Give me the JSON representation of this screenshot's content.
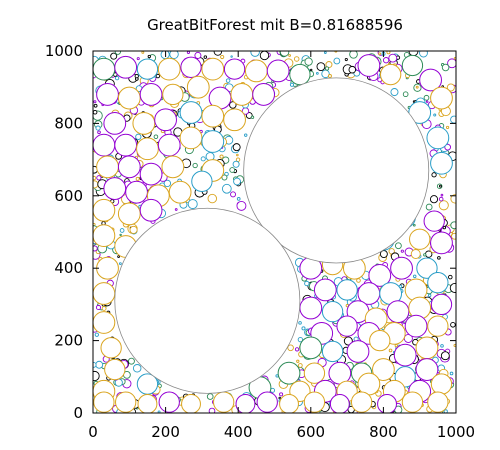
{
  "chart_data": {
    "type": "scatter",
    "title": "GreatBitForest mit B=0.81688596",
    "xlabel": "",
    "ylabel": "",
    "xlim": [
      0,
      1000
    ],
    "ylim": [
      0,
      1000
    ],
    "xticks": [
      "0",
      "200",
      "400",
      "600",
      "800",
      "1000"
    ],
    "yticks": [
      "0",
      "200",
      "400",
      "600",
      "800",
      "1000"
    ],
    "grid": false,
    "legend": "none",
    "series_colors": [
      "#9400d3",
      "#daa520",
      "#2e8b57",
      "#2a9ec8",
      "#000000"
    ],
    "large_circles": [
      {
        "x": 670,
        "y": 670,
        "r": 255
      },
      {
        "x": 315,
        "y": 310,
        "r": 255
      }
    ],
    "medium_circles": [
      {
        "x": 30,
        "y": 950,
        "r": 30,
        "c": 2
      },
      {
        "x": 90,
        "y": 955,
        "r": 30,
        "c": 0
      },
      {
        "x": 150,
        "y": 950,
        "r": 28,
        "c": 3
      },
      {
        "x": 210,
        "y": 950,
        "r": 30,
        "c": 1
      },
      {
        "x": 270,
        "y": 955,
        "r": 28,
        "c": 0
      },
      {
        "x": 330,
        "y": 950,
        "r": 30,
        "c": 1
      },
      {
        "x": 390,
        "y": 950,
        "r": 28,
        "c": 0
      },
      {
        "x": 450,
        "y": 945,
        "r": 30,
        "c": 1
      },
      {
        "x": 510,
        "y": 945,
        "r": 30,
        "c": 0
      },
      {
        "x": 570,
        "y": 935,
        "r": 28,
        "c": 2
      },
      {
        "x": 760,
        "y": 960,
        "r": 30,
        "c": 0
      },
      {
        "x": 820,
        "y": 935,
        "r": 28,
        "c": 1
      },
      {
        "x": 880,
        "y": 960,
        "r": 28,
        "c": 2
      },
      {
        "x": 930,
        "y": 920,
        "r": 30,
        "c": 0
      },
      {
        "x": 40,
        "y": 880,
        "r": 30,
        "c": 0
      },
      {
        "x": 100,
        "y": 870,
        "r": 30,
        "c": 1
      },
      {
        "x": 160,
        "y": 880,
        "r": 30,
        "c": 0
      },
      {
        "x": 220,
        "y": 880,
        "r": 28,
        "c": 1
      },
      {
        "x": 290,
        "y": 900,
        "r": 30,
        "c": 1
      },
      {
        "x": 350,
        "y": 870,
        "r": 30,
        "c": 0
      },
      {
        "x": 410,
        "y": 880,
        "r": 30,
        "c": 1
      },
      {
        "x": 470,
        "y": 880,
        "r": 30,
        "c": 0
      },
      {
        "x": 960,
        "y": 870,
        "r": 30,
        "c": 1
      },
      {
        "x": 900,
        "y": 830,
        "r": 30,
        "c": 3
      },
      {
        "x": 60,
        "y": 800,
        "r": 30,
        "c": 0
      },
      {
        "x": 140,
        "y": 800,
        "r": 30,
        "c": 1
      },
      {
        "x": 200,
        "y": 810,
        "r": 30,
        "c": 0
      },
      {
        "x": 270,
        "y": 830,
        "r": 30,
        "c": 3
      },
      {
        "x": 330,
        "y": 820,
        "r": 30,
        "c": 1
      },
      {
        "x": 390,
        "y": 810,
        "r": 30,
        "c": 1
      },
      {
        "x": 30,
        "y": 740,
        "r": 30,
        "c": 0
      },
      {
        "x": 90,
        "y": 740,
        "r": 30,
        "c": 0
      },
      {
        "x": 150,
        "y": 730,
        "r": 30,
        "c": 1
      },
      {
        "x": 210,
        "y": 740,
        "r": 30,
        "c": 0
      },
      {
        "x": 270,
        "y": 760,
        "r": 30,
        "c": 1
      },
      {
        "x": 330,
        "y": 750,
        "r": 30,
        "c": 3
      },
      {
        "x": 950,
        "y": 760,
        "r": 30,
        "c": 3
      },
      {
        "x": 960,
        "y": 690,
        "r": 30,
        "c": 3
      },
      {
        "x": 40,
        "y": 680,
        "r": 30,
        "c": 1
      },
      {
        "x": 100,
        "y": 680,
        "r": 30,
        "c": 0
      },
      {
        "x": 160,
        "y": 660,
        "r": 30,
        "c": 0
      },
      {
        "x": 220,
        "y": 680,
        "r": 30,
        "c": 1
      },
      {
        "x": 330,
        "y": 670,
        "r": 30,
        "c": 1
      },
      {
        "x": 60,
        "y": 620,
        "r": 30,
        "c": 0
      },
      {
        "x": 120,
        "y": 610,
        "r": 30,
        "c": 0
      },
      {
        "x": 180,
        "y": 600,
        "r": 30,
        "c": 1
      },
      {
        "x": 240,
        "y": 610,
        "r": 30,
        "c": 1
      },
      {
        "x": 300,
        "y": 640,
        "r": 28,
        "c": 3
      },
      {
        "x": 30,
        "y": 560,
        "r": 30,
        "c": 1
      },
      {
        "x": 100,
        "y": 550,
        "r": 30,
        "c": 1
      },
      {
        "x": 160,
        "y": 560,
        "r": 30,
        "c": 0
      },
      {
        "x": 940,
        "y": 530,
        "r": 28,
        "c": 0
      },
      {
        "x": 960,
        "y": 470,
        "r": 30,
        "c": 0
      },
      {
        "x": 900,
        "y": 480,
        "r": 28,
        "c": 1
      },
      {
        "x": 30,
        "y": 490,
        "r": 30,
        "c": 1
      },
      {
        "x": 90,
        "y": 460,
        "r": 30,
        "c": 1
      },
      {
        "x": 860,
        "y": 540,
        "r": 28,
        "c": 3
      },
      {
        "x": 800,
        "y": 480,
        "r": 30,
        "c": 3
      },
      {
        "x": 740,
        "y": 460,
        "r": 28,
        "c": 1
      },
      {
        "x": 40,
        "y": 400,
        "r": 30,
        "c": 1
      },
      {
        "x": 600,
        "y": 400,
        "r": 30,
        "c": 0
      },
      {
        "x": 660,
        "y": 410,
        "r": 28,
        "c": 1
      },
      {
        "x": 720,
        "y": 400,
        "r": 30,
        "c": 1
      },
      {
        "x": 790,
        "y": 380,
        "r": 30,
        "c": 0
      },
      {
        "x": 850,
        "y": 400,
        "r": 30,
        "c": 0
      },
      {
        "x": 920,
        "y": 400,
        "r": 28,
        "c": 3
      },
      {
        "x": 640,
        "y": 340,
        "r": 30,
        "c": 0
      },
      {
        "x": 700,
        "y": 340,
        "r": 28,
        "c": 3
      },
      {
        "x": 760,
        "y": 330,
        "r": 30,
        "c": 0
      },
      {
        "x": 820,
        "y": 330,
        "r": 30,
        "c": 3
      },
      {
        "x": 890,
        "y": 340,
        "r": 30,
        "c": 1
      },
      {
        "x": 950,
        "y": 360,
        "r": 28,
        "c": 3
      },
      {
        "x": 30,
        "y": 330,
        "r": 30,
        "c": 1
      },
      {
        "x": 600,
        "y": 290,
        "r": 30,
        "c": 0
      },
      {
        "x": 660,
        "y": 280,
        "r": 28,
        "c": 3
      },
      {
        "x": 730,
        "y": 280,
        "r": 30,
        "c": 0
      },
      {
        "x": 780,
        "y": 260,
        "r": 30,
        "c": 1
      },
      {
        "x": 840,
        "y": 280,
        "r": 30,
        "c": 0
      },
      {
        "x": 900,
        "y": 290,
        "r": 30,
        "c": 1
      },
      {
        "x": 960,
        "y": 300,
        "r": 28,
        "c": 0
      },
      {
        "x": 30,
        "y": 250,
        "r": 30,
        "c": 1
      },
      {
        "x": 630,
        "y": 220,
        "r": 30,
        "c": 0
      },
      {
        "x": 700,
        "y": 240,
        "r": 28,
        "c": 0
      },
      {
        "x": 760,
        "y": 220,
        "r": 30,
        "c": 0
      },
      {
        "x": 830,
        "y": 220,
        "r": 30,
        "c": 1
      },
      {
        "x": 890,
        "y": 240,
        "r": 30,
        "c": 0
      },
      {
        "x": 950,
        "y": 240,
        "r": 28,
        "c": 1
      },
      {
        "x": 50,
        "y": 180,
        "r": 28,
        "c": 1
      },
      {
        "x": 600,
        "y": 180,
        "r": 30,
        "c": 2
      },
      {
        "x": 660,
        "y": 170,
        "r": 28,
        "c": 3
      },
      {
        "x": 730,
        "y": 170,
        "r": 30,
        "c": 0
      },
      {
        "x": 790,
        "y": 200,
        "r": 28,
        "c": 1
      },
      {
        "x": 860,
        "y": 160,
        "r": 30,
        "c": 0
      },
      {
        "x": 920,
        "y": 180,
        "r": 30,
        "c": 1
      },
      {
        "x": 60,
        "y": 120,
        "r": 28,
        "c": 1
      },
      {
        "x": 540,
        "y": 110,
        "r": 30,
        "c": 2
      },
      {
        "x": 610,
        "y": 110,
        "r": 28,
        "c": 1
      },
      {
        "x": 680,
        "y": 110,
        "r": 30,
        "c": 0
      },
      {
        "x": 740,
        "y": 110,
        "r": 28,
        "c": 2
      },
      {
        "x": 800,
        "y": 120,
        "r": 30,
        "c": 1
      },
      {
        "x": 860,
        "y": 100,
        "r": 28,
        "c": 3
      },
      {
        "x": 920,
        "y": 120,
        "r": 30,
        "c": 0
      },
      {
        "x": 30,
        "y": 60,
        "r": 30,
        "c": 1
      },
      {
        "x": 150,
        "y": 80,
        "r": 28,
        "c": 3
      },
      {
        "x": 460,
        "y": 70,
        "r": 30,
        "c": 2
      },
      {
        "x": 570,
        "y": 60,
        "r": 28,
        "c": 1
      },
      {
        "x": 640,
        "y": 60,
        "r": 30,
        "c": 0
      },
      {
        "x": 700,
        "y": 60,
        "r": 28,
        "c": 1
      },
      {
        "x": 760,
        "y": 80,
        "r": 30,
        "c": 1
      },
      {
        "x": 830,
        "y": 60,
        "r": 30,
        "c": 1
      },
      {
        "x": 900,
        "y": 60,
        "r": 30,
        "c": 0
      },
      {
        "x": 960,
        "y": 80,
        "r": 28,
        "c": 1
      },
      {
        "x": 30,
        "y": 30,
        "r": 28,
        "c": 1
      },
      {
        "x": 90,
        "y": 30,
        "r": 28,
        "c": 1
      },
      {
        "x": 150,
        "y": 25,
        "r": 26,
        "c": 1
      },
      {
        "x": 210,
        "y": 30,
        "r": 28,
        "c": 0
      },
      {
        "x": 270,
        "y": 25,
        "r": 26,
        "c": 1
      },
      {
        "x": 360,
        "y": 30,
        "r": 28,
        "c": 1
      },
      {
        "x": 420,
        "y": 25,
        "r": 26,
        "c": 0
      },
      {
        "x": 480,
        "y": 30,
        "r": 28,
        "c": 0
      },
      {
        "x": 540,
        "y": 25,
        "r": 26,
        "c": 1
      },
      {
        "x": 610,
        "y": 30,
        "r": 28,
        "c": 1
      },
      {
        "x": 680,
        "y": 25,
        "r": 26,
        "c": 0
      },
      {
        "x": 740,
        "y": 30,
        "r": 28,
        "c": 1
      },
      {
        "x": 810,
        "y": 25,
        "r": 26,
        "c": 0
      },
      {
        "x": 880,
        "y": 30,
        "r": 28,
        "c": 1
      },
      {
        "x": 950,
        "y": 30,
        "r": 28,
        "c": 1
      }
    ],
    "small_circle_settings": {
      "count": 900,
      "min_r": 2,
      "max_r": 13,
      "seed": 12345
    }
  }
}
